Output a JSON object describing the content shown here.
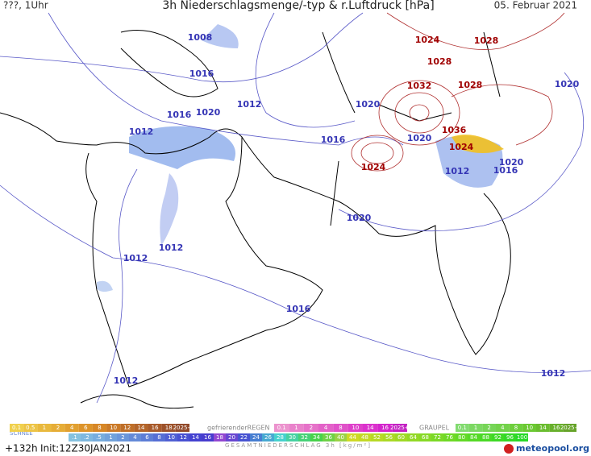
{
  "header": {
    "left": "???, 1Uhr",
    "title": "3h Niederschlagsmenge/-typ & r.Luftdruck [hPa]",
    "date": "05. Februar 2021"
  },
  "isobar_labels": [
    "1008",
    "1016",
    "1016",
    "1020",
    "1012",
    "1012",
    "1016",
    "1020",
    "1020",
    "1012",
    "1016",
    "1020",
    "1020",
    "1020",
    "1012",
    "1012",
    "1016",
    "1012",
    "1012",
    "1024",
    "1028",
    "1028",
    "1032",
    "1028",
    "1036",
    "1024",
    "1024"
  ],
  "legend": {
    "rain_scale": [
      "0.1",
      "0.5",
      "1",
      "2",
      "4",
      "6",
      "8",
      "10",
      "12",
      "14",
      "16",
      "18",
      "2025+"
    ],
    "snow_label": "SCHNEE",
    "freezing_rain_label": "gefrierenderREGEN",
    "freezing_rain_scale": [
      "0.1",
      "1",
      "2",
      "4",
      "8",
      "10",
      "14",
      "16",
      "2025+"
    ],
    "graupel_label": "GRAUPEL",
    "graupel_scale": [
      "0.1",
      "1",
      "2",
      "4",
      "8",
      "10",
      "14",
      "16",
      "2025+"
    ],
    "total_scale": [
      ".1",
      ".2",
      ".5",
      "1",
      "2",
      "4",
      "6",
      "8",
      "10",
      "12",
      "14",
      "16",
      "18",
      "20",
      "22",
      "24",
      "26",
      "28",
      "30",
      "32",
      "34",
      "36",
      "40",
      "44",
      "48",
      "52",
      "56",
      "60",
      "64",
      "68",
      "72",
      "76",
      "80",
      "84",
      "88",
      "92",
      "96",
      "100"
    ],
    "total_label": "GESAMTNIEDERSCHLAG 3h [kg/m²]"
  },
  "footer": {
    "lead": "+132h",
    "init": "Init:12Z30JAN2021",
    "brand": "meteopool.org"
  }
}
